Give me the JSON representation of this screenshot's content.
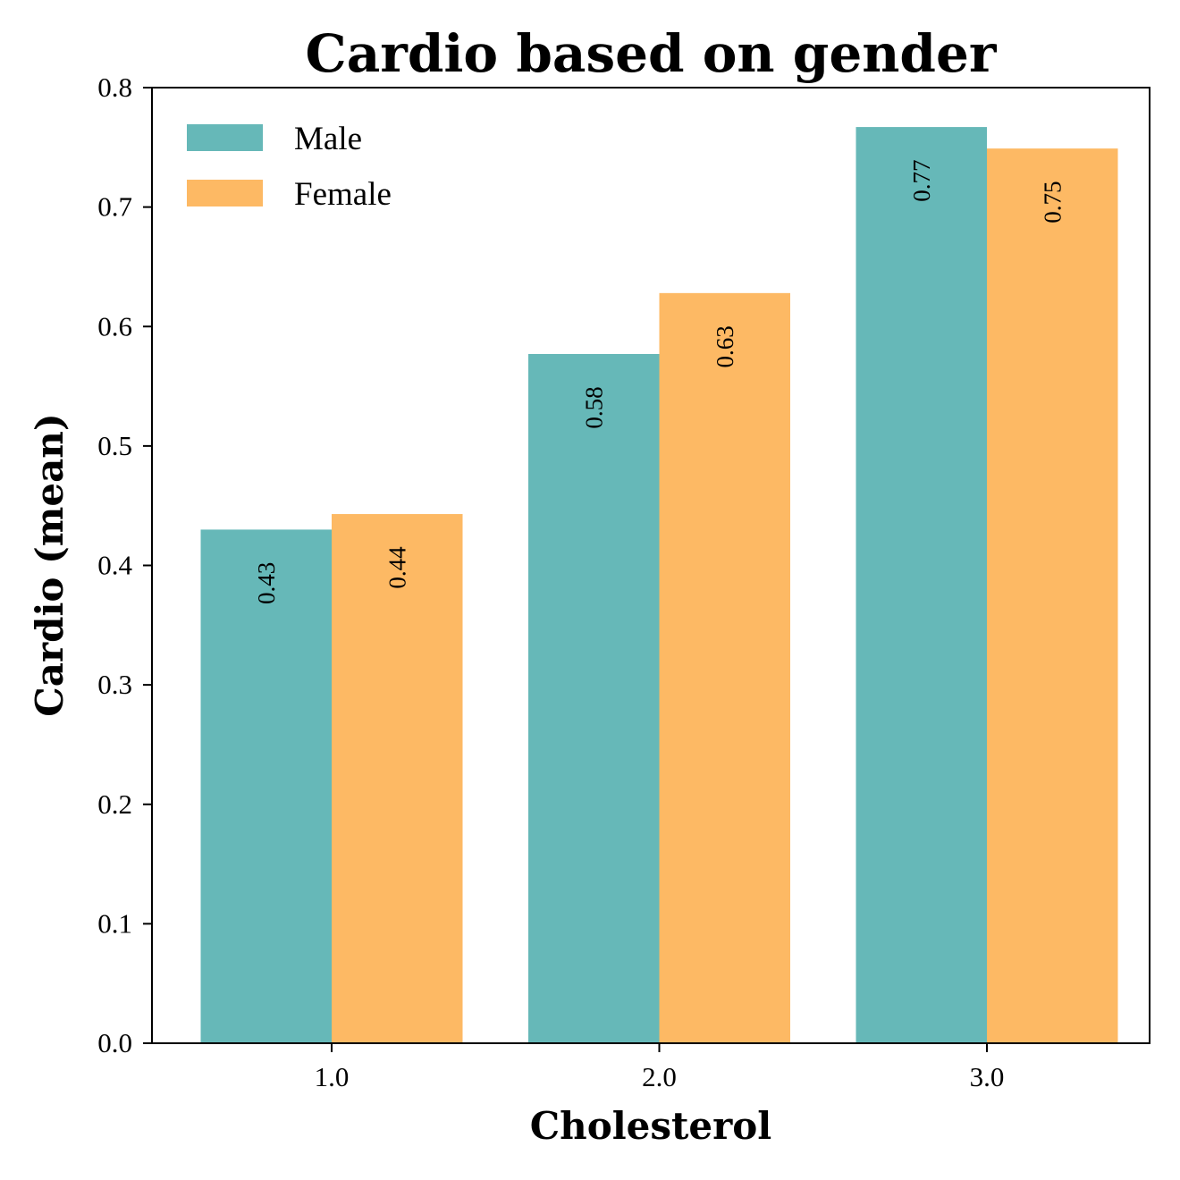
{
  "chart_data": {
    "type": "bar",
    "title": "Cardio based on gender",
    "xlabel": "Cholesterol",
    "ylabel": "Cardio (mean)",
    "categories": [
      "1.0",
      "2.0",
      "3.0"
    ],
    "series": [
      {
        "name": "Male",
        "color": "#66b8b8",
        "values": [
          0.43,
          0.577,
          0.767
        ],
        "labels": [
          "0.43",
          "0.58",
          "0.77"
        ]
      },
      {
        "name": "Female",
        "color": "#fdb964",
        "values": [
          0.443,
          0.628,
          0.749
        ],
        "labels": [
          "0.44",
          "0.63",
          "0.75"
        ]
      }
    ],
    "ylim": [
      0,
      0.8
    ],
    "yticks": [
      "0.0",
      "0.1",
      "0.2",
      "0.3",
      "0.4",
      "0.5",
      "0.6",
      "0.7",
      "0.8"
    ],
    "grid": false,
    "legend_position": "top-left"
  }
}
